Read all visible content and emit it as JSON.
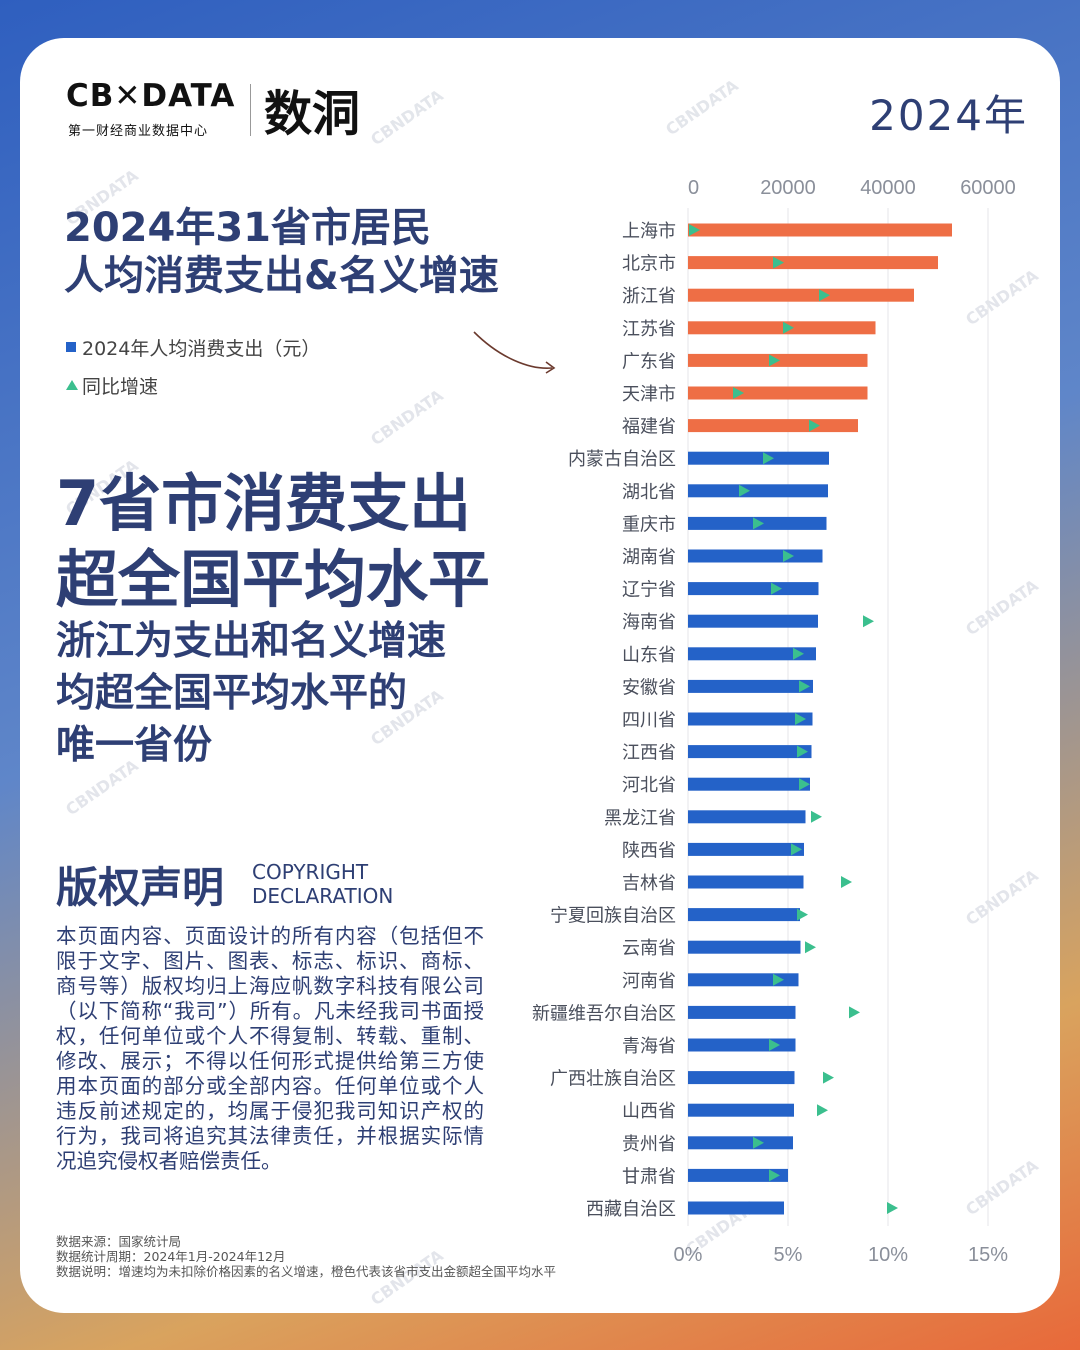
{
  "logo": {
    "name": "CB✕DATA",
    "subtitle": "第一财经商业数据中心",
    "brand": "数洞"
  },
  "year_label": "2024年",
  "title": [
    "2024年31省市居民",
    "人均消费支出&名义增速"
  ],
  "legend": {
    "spend": "2024年人均消费支出（元）",
    "growth": "同比增速"
  },
  "headline": [
    "7省市消费支出",
    "超全国平均水平"
  ],
  "subheadline": [
    "浙江为支出和名义增速",
    "均超全国平均水平的",
    "唯一省份"
  ],
  "copyright": {
    "title": "版权声明",
    "en_1": "COPYRIGHT",
    "en_2": "DECLARATION",
    "body": "本页面内容、页面设计的所有内容（包括但不限于文字、图片、图表、标志、标识、商标、商号等）版权均归上海应帆数字科技有限公司（以下简称“我司”）所有。凡未经我司书面授权，任何单位或个人不得复制、转载、重制、修改、展示；不得以任何形式提供给第三方使用本页面的部分或全部内容。任何单位或个人违反前述规定的，均属于侵犯我司知识产权的行为，我司将追究其法律责任，并根据实际情况追究侵权者赔偿责任。"
  },
  "footer": {
    "source": "数据来源：国家统计局",
    "period": "数据统计周期：2024年1月-2024年12月",
    "note": "数据说明：增速均为未扣除价格因素的名义增速，橙色代表该省市支出金额超全国平均水平"
  },
  "watermark": "CBNDATA",
  "colors": {
    "above_avg": "#ee6e45",
    "below_avg": "#2462c8",
    "growth_marker": "#3bbf8e",
    "title": "#2e3f74"
  },
  "chart_data": {
    "type": "bar",
    "orientation": "horizontal",
    "categories": [
      "上海市",
      "北京市",
      "浙江省",
      "江苏省",
      "广东省",
      "天津市",
      "福建省",
      "内蒙古自治区",
      "湖北省",
      "重庆市",
      "湖南省",
      "辽宁省",
      "海南省",
      "山东省",
      "安徽省",
      "四川省",
      "江西省",
      "河北省",
      "黑龙江省",
      "陕西省",
      "吉林省",
      "宁夏回族自治区",
      "云南省",
      "河南省",
      "新疆维吾尔自治区",
      "青海省",
      "广西壮族自治区",
      "山西省",
      "贵州省",
      "甘肃省",
      "西藏自治区"
    ],
    "series": [
      {
        "values": [
          52800,
          50000,
          45200,
          37500,
          35900,
          35900,
          34000,
          28200,
          28000,
          27700,
          26900,
          26100,
          26000,
          25600,
          25000,
          24900,
          24700,
          24400,
          23500,
          23200,
          23100,
          22400,
          22500,
          22100,
          21500,
          21500,
          21300,
          21200,
          21000,
          20000,
          19200
        ],
        "axis": "top"
      },
      {
        "values": [
          0.3,
          4.5,
          6.8,
          5.0,
          4.3,
          2.5,
          6.3,
          4.0,
          2.8,
          3.5,
          5.0,
          4.4,
          9.0,
          5.5,
          5.8,
          5.6,
          5.7,
          5.8,
          6.4,
          5.4,
          7.9,
          5.7,
          6.1,
          4.5,
          8.3,
          4.3,
          7.0,
          6.7,
          3.5,
          4.3,
          10.2
        ],
        "axis": "bottom",
        "marker": "triangle"
      }
    ],
    "x_axis_top": {
      "ticks": [
        "0",
        "20000",
        "40000",
        "60000"
      ],
      "range": [
        0,
        66000
      ]
    },
    "x_axis_bottom": {
      "ticks": [
        "0%",
        "5%",
        "10%",
        "15%"
      ],
      "range": [
        0,
        16.5
      ]
    },
    "above_average_count": 7,
    "grid": true
  }
}
